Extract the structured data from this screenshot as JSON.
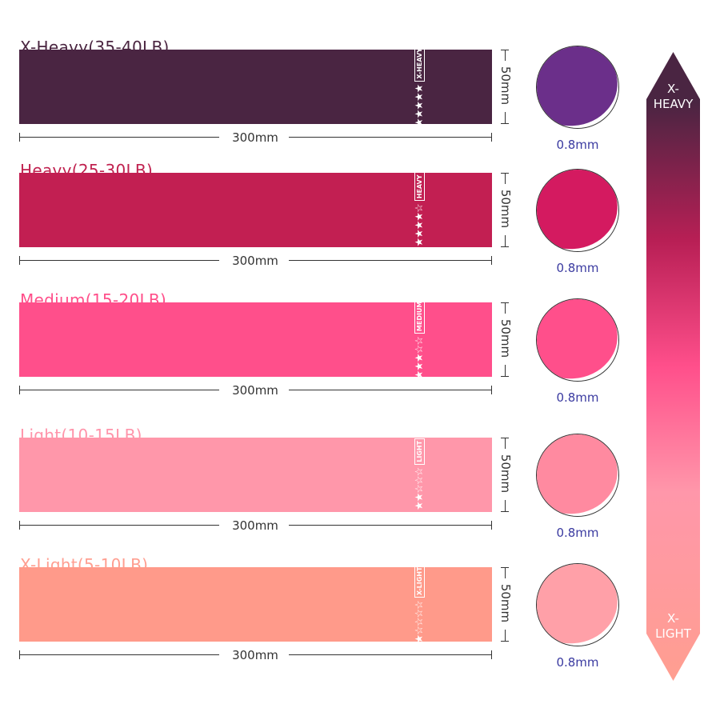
{
  "bands": [
    {
      "title": "X-Heavy(35-40LB)",
      "level": "X-HEAVY",
      "stars_filled": 5,
      "length": "300mm",
      "width": "50mm",
      "thickness": "0.8mm",
      "color": "#4a2542",
      "title_color": "#4a2540",
      "fold_color": "#6b2f8a"
    },
    {
      "title": "Heavy(25-30LB)",
      "level": "HEAVY",
      "stars_filled": 4,
      "length": "300mm",
      "width": "50mm",
      "thickness": "0.8mm",
      "color": "#c21f52",
      "title_color": "#c0214f",
      "fold_color": "#d41a60"
    },
    {
      "title": "Medium(15-20LB)",
      "level": "MEDIUM",
      "stars_filled": 3,
      "length": "300mm",
      "width": "50mm",
      "thickness": "0.8mm",
      "color": "#ff4f8b",
      "title_color": "#ff4f8a",
      "fold_color": "#ff4f8b"
    },
    {
      "title": "Light(10-15LB)",
      "level": "LIGHT",
      "stars_filled": 2,
      "length": "300mm",
      "width": "50mm",
      "thickness": "0.8mm",
      "color": "#ff97aa",
      "title_color": "#ff94aa",
      "fold_color": "#ff8aa0"
    },
    {
      "title": "X-Light(5-10LB)",
      "level": "X-LIGHT",
      "stars_filled": 1,
      "length": "300mm",
      "width": "50mm",
      "thickness": "0.8mm",
      "color": "#ff9a8a",
      "title_color": "#ff9e90",
      "fold_color": "#ffa0a8"
    }
  ],
  "scale": {
    "top_label": "X-\nHEAVY",
    "top_line1": "X-",
    "top_line2": "HEAVY",
    "bottom_line1": "X-",
    "bottom_line2": "LIGHT"
  }
}
